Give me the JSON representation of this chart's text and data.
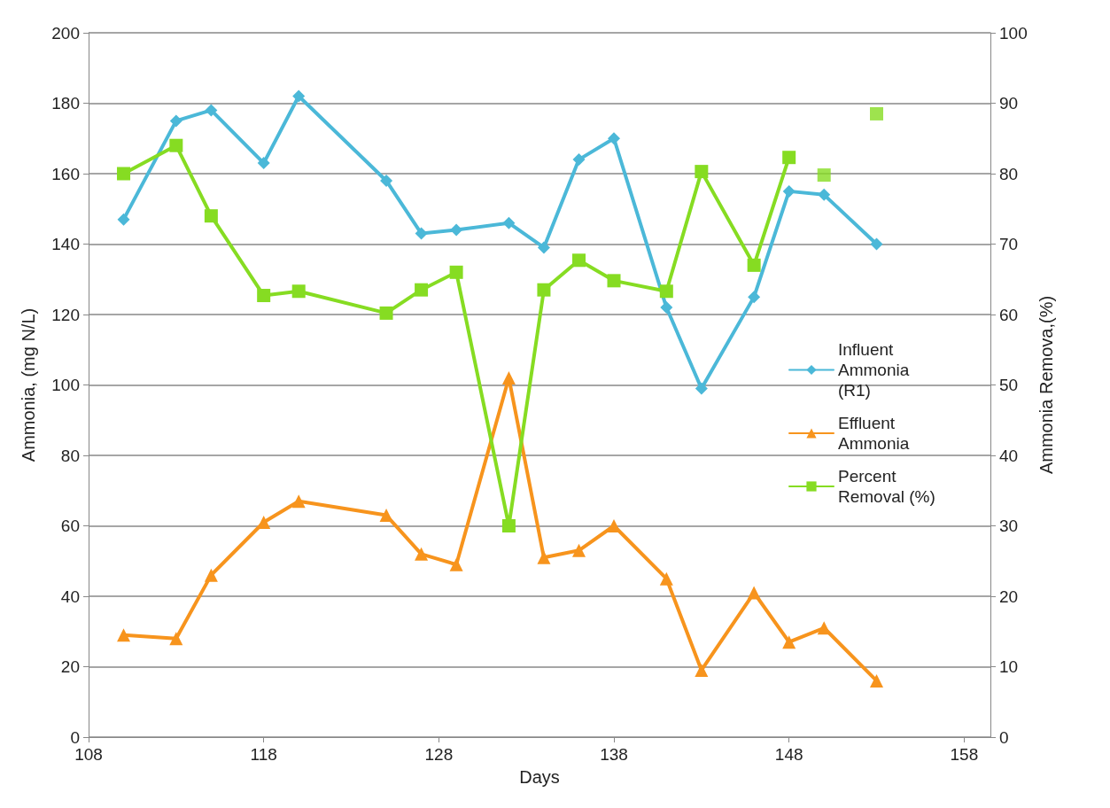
{
  "chart_data": {
    "type": "line",
    "xlabel": "Days",
    "ylabel": "Ammonia, (mg N/L)",
    "y2label": "Ammonia Remova,(%)",
    "xlim": [
      108,
      159.5
    ],
    "xticks": [
      108,
      118,
      128,
      138,
      148,
      158
    ],
    "ylim": [
      0,
      200
    ],
    "yticks": [
      0,
      20,
      40,
      60,
      80,
      100,
      120,
      140,
      160,
      180,
      200
    ],
    "y2lim": [
      0,
      100
    ],
    "y2ticks": [
      0,
      10,
      20,
      30,
      40,
      50,
      60,
      70,
      80,
      90,
      100
    ],
    "grid": "y",
    "legend": "right",
    "series": [
      {
        "name": "Influent Ammonia (R1)",
        "color": "#4bb8d8",
        "marker": "diamond",
        "x": [
          110,
          113,
          115,
          118,
          120,
          125,
          127,
          129,
          132,
          134,
          136,
          138,
          141,
          143,
          146,
          148,
          150,
          153
        ],
        "values": [
          147,
          175,
          178,
          163,
          182,
          158,
          143,
          144,
          146,
          139,
          164,
          170,
          122,
          99,
          125,
          155,
          154,
          140
        ]
      },
      {
        "name": "Effluent Ammonia",
        "color": "#f7941d",
        "marker": "triangle",
        "x": [
          110,
          113,
          115,
          118,
          120,
          125,
          127,
          129,
          132,
          134,
          136,
          138,
          141,
          143,
          146,
          148,
          150,
          153
        ],
        "values": [
          29,
          28,
          46,
          61,
          67,
          63,
          52,
          49,
          102,
          51,
          53,
          60,
          45,
          19,
          41,
          27,
          31,
          16
        ]
      },
      {
        "name": "Percent Removal (%)",
        "color": "#86dc22",
        "marker": "square",
        "axis": "y2",
        "x": [
          110,
          113,
          115,
          118,
          120,
          125,
          127,
          129,
          132,
          134,
          136,
          138,
          141,
          143,
          146,
          148
        ],
        "values": [
          80,
          84,
          74,
          62.7,
          63.3,
          60.2,
          63.5,
          66,
          30,
          63.5,
          67.7,
          64.8,
          63.3,
          80.3,
          67,
          82.3
        ]
      },
      {
        "type": "scatter",
        "color": "#86dc22",
        "marker": "square",
        "axis": "y2",
        "x": [
          150,
          153
        ],
        "values": [
          79.8,
          88.5
        ]
      }
    ]
  }
}
